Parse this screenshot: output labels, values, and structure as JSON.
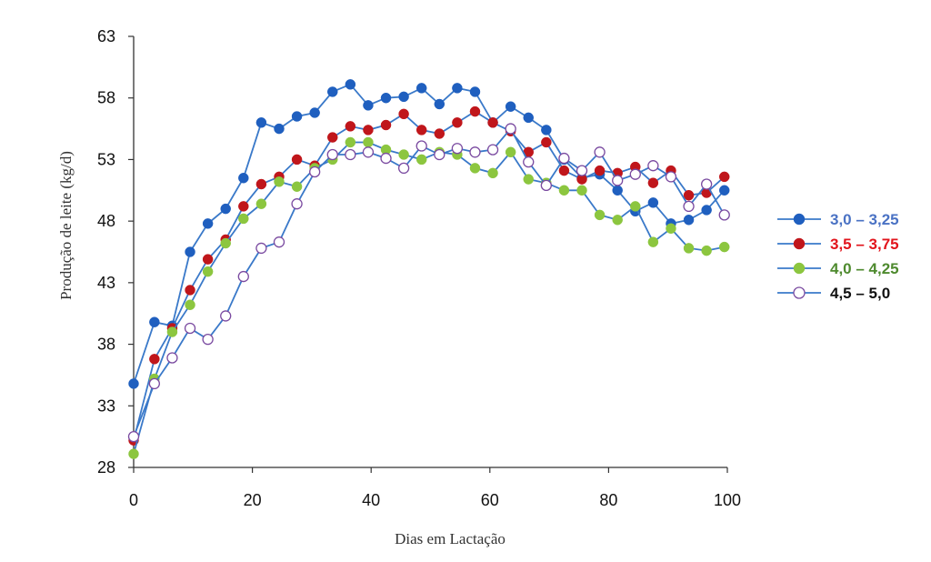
{
  "chart_data": {
    "type": "line",
    "title": "",
    "xlabel": "Dias em Lactação",
    "ylabel": "Produção de leite (kg/d)",
    "xlim": [
      0,
      100
    ],
    "ylim": [
      28,
      63
    ],
    "xticks": [
      0,
      20,
      40,
      60,
      80,
      100
    ],
    "yticks": [
      28,
      33,
      38,
      43,
      48,
      53,
      58,
      63
    ],
    "grid": false,
    "legend_position": "right",
    "series": [
      {
        "name": "3,0 – 3,25",
        "color": "#1f5fbf",
        "label_color": "#4a72c4",
        "marker": "filled",
        "x": [
          0,
          3.5,
          6.5,
          9.5,
          12.5,
          15.5,
          18.5,
          21.5,
          24.5,
          27.5,
          30.5,
          33.5,
          36.5,
          39.5,
          42.5,
          45.5,
          48.5,
          51.5,
          54.5,
          57.5,
          60.5,
          63.5,
          66.5,
          69.5,
          72.5,
          75.5,
          78.5,
          81.5,
          84.5,
          87.5,
          90.5,
          93.5,
          96.5,
          99.5
        ],
        "y": [
          34.8,
          39.8,
          39.5,
          45.5,
          47.8,
          49.0,
          51.5,
          56.0,
          55.5,
          56.5,
          56.8,
          58.5,
          59.1,
          57.4,
          58.0,
          58.1,
          58.8,
          57.5,
          58.8,
          58.5,
          56.0,
          57.3,
          56.4,
          55.4,
          53.0,
          51.5,
          51.8,
          50.5,
          48.8,
          49.5,
          47.8,
          48.1,
          48.9,
          50.5
        ]
      },
      {
        "name": "3,5 – 3,75",
        "color": "#c0161b",
        "label_color": "#e2141c",
        "marker": "filled",
        "x": [
          0,
          3.5,
          6.5,
          9.5,
          12.5,
          15.5,
          18.5,
          21.5,
          24.5,
          27.5,
          30.5,
          33.5,
          36.5,
          39.5,
          42.5,
          45.5,
          48.5,
          51.5,
          54.5,
          57.5,
          60.5,
          63.5,
          66.5,
          69.5,
          72.5,
          75.5,
          78.5,
          81.5,
          84.5,
          87.5,
          90.5,
          93.5,
          96.5,
          99.5
        ],
        "y": [
          30.2,
          36.8,
          39.3,
          42.4,
          44.9,
          46.5,
          49.2,
          51.0,
          51.6,
          53.0,
          52.5,
          54.8,
          55.7,
          55.4,
          55.8,
          56.7,
          55.4,
          55.1,
          56.0,
          56.9,
          56.0,
          55.3,
          53.6,
          54.4,
          52.1,
          51.4,
          52.1,
          51.9,
          52.4,
          51.1,
          52.1,
          50.1,
          50.3,
          51.6
        ]
      },
      {
        "name": "4,0 – 4,25",
        "color": "#8cc63f",
        "label_color": "#4e8a2e",
        "marker": "filled",
        "x": [
          0,
          3.5,
          6.5,
          9.5,
          12.5,
          15.5,
          18.5,
          21.5,
          24.5,
          27.5,
          30.5,
          33.5,
          36.5,
          39.5,
          42.5,
          45.5,
          48.5,
          51.5,
          54.5,
          57.5,
          60.5,
          63.5,
          66.5,
          69.5,
          72.5,
          75.5,
          78.5,
          81.5,
          84.5,
          87.5,
          90.5,
          93.5,
          96.5,
          99.5
        ],
        "y": [
          29.1,
          35.2,
          39.0,
          41.2,
          43.9,
          46.2,
          48.2,
          49.4,
          51.2,
          50.8,
          52.3,
          53.0,
          54.4,
          54.4,
          53.8,
          53.4,
          53.0,
          53.6,
          53.4,
          52.3,
          51.9,
          53.6,
          51.4,
          51.1,
          50.5,
          50.5,
          48.5,
          48.1,
          49.2,
          46.3,
          47.4,
          45.8,
          45.6,
          45.9
        ]
      },
      {
        "name": "4,5 – 5,0",
        "color": "#7a4aa0",
        "label_color": "#111111",
        "marker": "open",
        "x": [
          0,
          3.5,
          6.5,
          9.5,
          12.5,
          15.5,
          18.5,
          21.5,
          24.5,
          27.5,
          30.5,
          33.5,
          36.5,
          39.5,
          42.5,
          45.5,
          48.5,
          51.5,
          54.5,
          57.5,
          60.5,
          63.5,
          66.5,
          69.5,
          72.5,
          75.5,
          78.5,
          81.5,
          84.5,
          87.5,
          90.5,
          93.5,
          96.5,
          99.5
        ],
        "y": [
          30.5,
          34.8,
          36.9,
          39.3,
          38.4,
          40.3,
          43.5,
          45.8,
          46.3,
          49.4,
          52.0,
          53.4,
          53.4,
          53.6,
          53.1,
          52.3,
          54.1,
          53.4,
          53.9,
          53.6,
          53.8,
          55.5,
          52.8,
          50.9,
          53.1,
          52.1,
          53.6,
          51.3,
          51.8,
          52.5,
          51.6,
          49.2,
          51.0,
          48.5
        ]
      }
    ]
  }
}
